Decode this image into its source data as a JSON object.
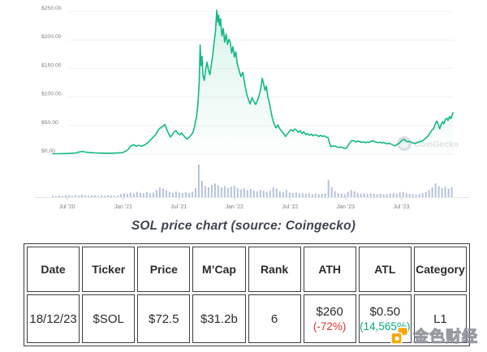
{
  "caption": "SOL price chart (source: Coingecko)",
  "chart_data": {
    "type": "line",
    "title": "SOL price chart",
    "ylim": [
      0,
      250
    ],
    "grid": true,
    "watermark": "CoinGecko",
    "y_ticks": [
      {
        "label": "$250.00",
        "value": 250
      },
      {
        "label": "$200.00",
        "value": 200
      },
      {
        "label": "$150.00",
        "value": 150
      },
      {
        "label": "$100.00",
        "value": 100
      },
      {
        "label": "$50.00",
        "value": 50
      },
      {
        "label": "$0.00",
        "value": 0
      }
    ],
    "time_unit": "t = months since 2020-05-15",
    "x_ticks": [
      {
        "label": "Jul '20",
        "t": 1.55
      },
      {
        "label": "Jan '21",
        "t": 7.6
      },
      {
        "label": "Jul '21",
        "t": 13.6
      },
      {
        "label": "Jan '22",
        "t": 19.6
      },
      {
        "label": "Jul '22",
        "t": 25.6
      },
      {
        "label": "Jan '23",
        "t": 31.6
      },
      {
        "label": "Jul '23",
        "t": 37.6
      }
    ],
    "series": [
      {
        "name": "SOL price (USD)",
        "color": "#12b886",
        "points": [
          [
            0,
            0.6
          ],
          [
            0.5,
            0.7
          ],
          [
            1,
            0.8
          ],
          [
            1.5,
            0.95
          ],
          [
            2,
            1.3
          ],
          [
            2.5,
            2.2
          ],
          [
            2.9,
            3.9
          ],
          [
            3.2,
            4.9
          ],
          [
            3.5,
            3.5
          ],
          [
            3.8,
            3.0
          ],
          [
            4.2,
            2.5
          ],
          [
            4.6,
            2.2
          ],
          [
            5,
            1.9
          ],
          [
            5.5,
            1.65
          ],
          [
            6,
            1.5
          ],
          [
            6.5,
            1.7
          ],
          [
            7,
            2.1
          ],
          [
            7.5,
            2.6
          ],
          [
            7.8,
            4.5
          ],
          [
            8.1,
            7.5
          ],
          [
            8.4,
            14
          ],
          [
            8.7,
            16.5
          ],
          [
            9,
            13.5
          ],
          [
            9.3,
            15.5
          ],
          [
            9.6,
            14
          ],
          [
            9.9,
            16
          ],
          [
            10.2,
            19
          ],
          [
            10.5,
            24
          ],
          [
            10.8,
            29
          ],
          [
            11.1,
            34
          ],
          [
            11.4,
            43
          ],
          [
            11.7,
            47
          ],
          [
            12.0,
            50
          ],
          [
            12.1,
            52
          ],
          [
            12.3,
            43
          ],
          [
            12.5,
            36
          ],
          [
            12.7,
            30
          ],
          [
            12.9,
            34
          ],
          [
            13.1,
            39
          ],
          [
            13.3,
            41
          ],
          [
            13.5,
            36
          ],
          [
            13.7,
            34
          ],
          [
            13.9,
            37
          ],
          [
            14.1,
            33
          ],
          [
            14.3,
            29
          ],
          [
            14.5,
            26.5
          ],
          [
            14.7,
            29
          ],
          [
            14.9,
            33
          ],
          [
            15.1,
            37
          ],
          [
            15.3,
            48
          ],
          [
            15.5,
            65
          ],
          [
            15.65,
            85
          ],
          [
            15.8,
            125
          ],
          [
            15.9,
            191
          ],
          [
            16.0,
            155
          ],
          [
            16.1,
            171
          ],
          [
            16.2,
            139
          ],
          [
            16.35,
            129
          ],
          [
            16.5,
            149
          ],
          [
            16.65,
            161
          ],
          [
            16.8,
            147
          ],
          [
            16.95,
            139
          ],
          [
            17.1,
            156
          ],
          [
            17.25,
            172
          ],
          [
            17.4,
            195
          ],
          [
            17.55,
            214
          ],
          [
            17.7,
            252
          ],
          [
            17.8,
            231
          ],
          [
            17.9,
            243
          ],
          [
            18.0,
            225
          ],
          [
            18.1,
            237
          ],
          [
            18.25,
            207
          ],
          [
            18.4,
            220
          ],
          [
            18.55,
            196
          ],
          [
            18.7,
            210
          ],
          [
            18.85,
            192
          ],
          [
            19.0,
            201
          ],
          [
            19.15,
            196
          ],
          [
            19.3,
            177
          ],
          [
            19.45,
            188
          ],
          [
            19.6,
            170
          ],
          [
            19.75,
            179
          ],
          [
            19.9,
            158
          ],
          [
            20.1,
            147
          ],
          [
            20.3,
            136
          ],
          [
            20.5,
            143
          ],
          [
            20.7,
            124
          ],
          [
            20.9,
            107
          ],
          [
            21.1,
            96
          ],
          [
            21.3,
            88
          ],
          [
            21.5,
            99
          ],
          [
            21.7,
            92
          ],
          [
            21.9,
            87
          ],
          [
            22.1,
            95
          ],
          [
            22.3,
            105
          ],
          [
            22.45,
            117
          ],
          [
            22.6,
            133
          ],
          [
            22.75,
            123
          ],
          [
            22.9,
            112
          ],
          [
            23.05,
            119
          ],
          [
            23.2,
            101
          ],
          [
            23.35,
            91
          ],
          [
            23.5,
            78
          ],
          [
            23.7,
            62
          ],
          [
            23.9,
            52
          ],
          [
            24.1,
            46
          ],
          [
            24.3,
            51
          ],
          [
            24.5,
            44
          ],
          [
            24.7,
            40
          ],
          [
            24.9,
            36
          ],
          [
            25.1,
            31
          ],
          [
            25.3,
            35
          ],
          [
            25.5,
            39
          ],
          [
            25.7,
            43
          ],
          [
            25.9,
            40
          ],
          [
            26.1,
            44
          ],
          [
            26.3,
            42
          ],
          [
            26.5,
            38
          ],
          [
            26.7,
            41
          ],
          [
            26.9,
            36
          ],
          [
            27.1,
            39
          ],
          [
            27.3,
            34
          ],
          [
            27.5,
            36
          ],
          [
            27.7,
            33
          ],
          [
            27.9,
            35
          ],
          [
            28.1,
            32
          ],
          [
            28.3,
            34
          ],
          [
            28.5,
            33
          ],
          [
            28.7,
            31
          ],
          [
            28.9,
            33
          ],
          [
            29.1,
            31
          ],
          [
            29.3,
            32
          ],
          [
            29.5,
            30
          ],
          [
            29.7,
            29
          ],
          [
            29.85,
            20
          ],
          [
            30.0,
            13
          ],
          [
            30.15,
            14.5
          ],
          [
            30.3,
            13.5
          ],
          [
            30.5,
            14
          ],
          [
            30.7,
            12.5
          ],
          [
            30.9,
            11.5
          ],
          [
            31.1,
            12.5
          ],
          [
            31.3,
            11
          ],
          [
            31.5,
            9.8
          ],
          [
            31.7,
            11
          ],
          [
            31.9,
            16
          ],
          [
            32.1,
            21
          ],
          [
            32.3,
            24
          ],
          [
            32.5,
            23
          ],
          [
            32.7,
            21.5
          ],
          [
            32.9,
            23
          ],
          [
            33.1,
            22
          ],
          [
            33.3,
            20.5
          ],
          [
            33.5,
            21.5
          ],
          [
            33.7,
            20
          ],
          [
            33.9,
            21
          ],
          [
            34.1,
            20.5
          ],
          [
            34.3,
            22
          ],
          [
            34.5,
            23.5
          ],
          [
            34.7,
            22
          ],
          [
            34.9,
            21
          ],
          [
            35.1,
            20
          ],
          [
            35.3,
            21
          ],
          [
            35.5,
            19.5
          ],
          [
            35.7,
            20.5
          ],
          [
            35.9,
            19
          ],
          [
            36.1,
            18
          ],
          [
            36.3,
            19
          ],
          [
            36.5,
            17.5
          ],
          [
            36.7,
            16
          ],
          [
            36.9,
            14.5
          ],
          [
            37.1,
            16.5
          ],
          [
            37.3,
            18.5
          ],
          [
            37.5,
            21
          ],
          [
            37.7,
            24.5
          ],
          [
            37.9,
            26
          ],
          [
            38.1,
            23
          ],
          [
            38.3,
            21.5
          ],
          [
            38.5,
            22.5
          ],
          [
            38.7,
            20.5
          ],
          [
            38.9,
            19.5
          ],
          [
            39.1,
            18.5
          ],
          [
            39.3,
            20
          ],
          [
            39.5,
            21
          ],
          [
            39.7,
            22
          ],
          [
            39.9,
            23.5
          ],
          [
            40.1,
            26
          ],
          [
            40.3,
            29
          ],
          [
            40.5,
            32
          ],
          [
            40.7,
            37
          ],
          [
            40.9,
            42
          ],
          [
            41.1,
            45
          ],
          [
            41.3,
            54
          ],
          [
            41.45,
            58
          ],
          [
            41.6,
            51
          ],
          [
            41.75,
            44
          ],
          [
            41.9,
            52
          ],
          [
            42.05,
            57
          ],
          [
            42.2,
            53
          ],
          [
            42.35,
            60
          ],
          [
            42.5,
            63
          ],
          [
            42.65,
            59
          ],
          [
            42.8,
            66
          ],
          [
            42.95,
            62
          ],
          [
            43.1,
            69
          ],
          [
            43.2,
            72.5
          ]
        ]
      }
    ],
    "volume": {
      "name": "Trading volume (relative 0-1)",
      "color": "#b6c2da",
      "t_step": 0.35,
      "values": [
        0.04,
        0.03,
        0.05,
        0.04,
        0.06,
        0.05,
        0.04,
        0.06,
        0.05,
        0.07,
        0.05,
        0.04,
        0.05,
        0.06,
        0.04,
        0.05,
        0.04,
        0.06,
        0.05,
        0.04,
        0.05,
        0.09,
        0.12,
        0.1,
        0.14,
        0.11,
        0.16,
        0.13,
        0.12,
        0.15,
        0.12,
        0.14,
        0.22,
        0.3,
        0.26,
        0.2,
        0.16,
        0.13,
        0.17,
        0.14,
        0.12,
        0.15,
        0.13,
        0.16,
        0.28,
        1.0,
        0.5,
        0.34,
        0.3,
        0.38,
        0.42,
        0.36,
        0.3,
        0.34,
        0.28,
        0.32,
        0.35,
        0.28,
        0.24,
        0.27,
        0.22,
        0.25,
        0.2,
        0.18,
        0.22,
        0.19,
        0.16,
        0.2,
        0.3,
        0.26,
        0.18,
        0.15,
        0.22,
        0.14,
        0.12,
        0.14,
        0.11,
        0.13,
        0.1,
        0.12,
        0.09,
        0.11,
        0.09,
        0.1,
        0.12,
        0.52,
        0.3,
        0.18,
        0.13,
        0.1,
        0.09,
        0.16,
        0.22,
        0.18,
        0.13,
        0.11,
        0.12,
        0.1,
        0.12,
        0.1,
        0.09,
        0.1,
        0.08,
        0.09,
        0.11,
        0.13,
        0.1,
        0.14,
        0.16,
        0.12,
        0.1,
        0.09,
        0.08,
        0.1,
        0.12,
        0.16,
        0.22,
        0.3,
        0.42,
        0.34,
        0.28,
        0.32,
        0.26,
        0.3
      ]
    }
  },
  "table": {
    "headers": [
      "Date",
      "Ticker",
      "Price",
      "M’Cap",
      "Rank",
      "ATH",
      "ATL",
      "Category"
    ],
    "row": {
      "date": "18/12/23",
      "ticker": "$SOL",
      "price": "$72.5",
      "mcap": "$31.2b",
      "rank": "6",
      "ath_value": "$260",
      "ath_pct": "(-72%)",
      "atl_value": "$0.50",
      "atl_pct": "(14,565%)",
      "category": "L1"
    },
    "colors": {
      "ath_pct": "#e03131",
      "atl_pct": "#0bab7c",
      "border": "#3e3e40"
    }
  },
  "colors": {
    "line_green": "#12b886",
    "volume_bar": "#b6c2da",
    "gridline": "#f2f1f2",
    "axis_label": "#7b8089",
    "watermark_gray": "#c6cbd0",
    "jinse_orange": "#f7a600"
  },
  "watermarks": {
    "coingecko_text": "CoinGecko",
    "jinse_text": "金色财经"
  }
}
